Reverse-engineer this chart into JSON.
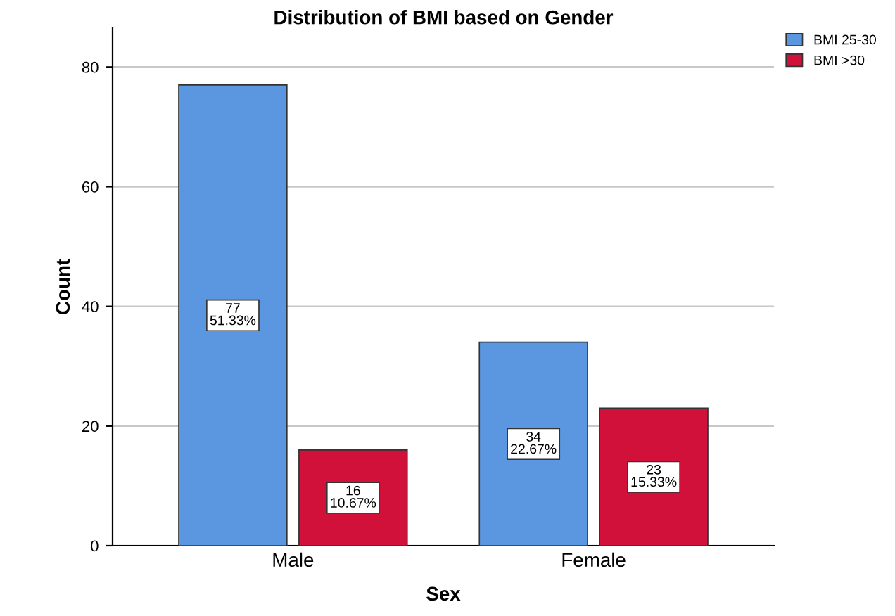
{
  "chart_data": {
    "type": "bar",
    "title": "Distribution of BMI based on Gender",
    "xlabel": "Sex",
    "ylabel": "Count",
    "categories": [
      "Male",
      "Female"
    ],
    "series": [
      {
        "name": "BMI 25-30",
        "color": "#5b97e1",
        "values": [
          77,
          34
        ],
        "value_labels": [
          "77\n51.33%",
          "34\n22.67%"
        ]
      },
      {
        "name": "BMI >30",
        "color": "#d2113b",
        "values": [
          16,
          23
        ],
        "value_labels": [
          "16\n10.67%",
          "23\n15.33%"
        ]
      }
    ],
    "ylim": [
      0,
      86.5
    ],
    "yticks": [
      0,
      20,
      40,
      60,
      80
    ],
    "grid": "y",
    "legend": "top right"
  }
}
